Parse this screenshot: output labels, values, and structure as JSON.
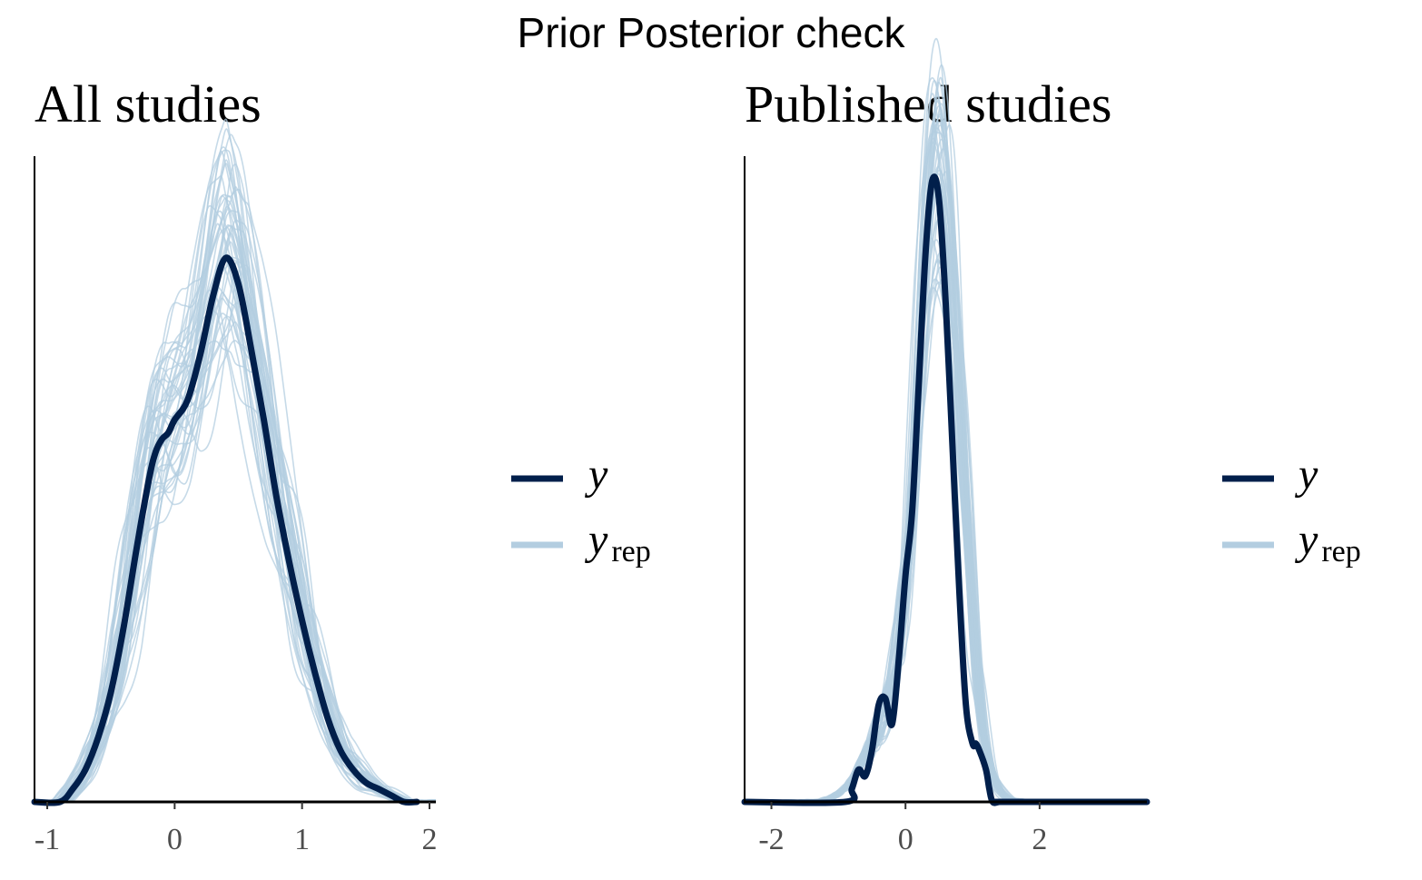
{
  "suptitle": "Prior Posterior check",
  "legend": {
    "y_label": "y",
    "yrep_label": "y",
    "yrep_sub": "rep"
  },
  "colors": {
    "y": "#011f4b",
    "yrep": "#b3cde0"
  },
  "chart_data": [
    {
      "type": "line",
      "title": "All studies",
      "xlim": [
        -1.1,
        2.05
      ],
      "xticks": [
        -1,
        0,
        1,
        2
      ],
      "xtick_labels": [
        "-1",
        "0",
        "1",
        "2"
      ],
      "ylim": [
        0,
        1.0
      ],
      "legend": "right",
      "series": [
        {
          "name": "y",
          "x": [
            -1.1,
            -0.9,
            -0.8,
            -0.7,
            -0.6,
            -0.5,
            -0.4,
            -0.3,
            -0.2,
            -0.15,
            -0.1,
            -0.05,
            0,
            0.1,
            0.2,
            0.3,
            0.4,
            0.5,
            0.6,
            0.7,
            0.8,
            0.9,
            1.0,
            1.1,
            1.2,
            1.3,
            1.4,
            1.5,
            1.6,
            1.7,
            1.8,
            1.9
          ],
          "y": [
            0,
            0,
            0.02,
            0.05,
            0.1,
            0.17,
            0.27,
            0.39,
            0.5,
            0.54,
            0.56,
            0.57,
            0.59,
            0.62,
            0.69,
            0.78,
            0.84,
            0.8,
            0.7,
            0.59,
            0.47,
            0.37,
            0.28,
            0.2,
            0.13,
            0.08,
            0.05,
            0.03,
            0.02,
            0.01,
            0,
            0
          ]
        }
      ]
    },
    {
      "type": "line",
      "title": "Published studies",
      "xlim": [
        -2.4,
        3.6
      ],
      "xticks": [
        -2,
        0,
        2
      ],
      "xtick_labels": [
        "-2",
        "0",
        "2"
      ],
      "ylim": [
        0,
        1.0
      ],
      "legend": "right",
      "series": [
        {
          "name": "y",
          "x": [
            -2.4,
            -0.9,
            -0.8,
            -0.7,
            -0.6,
            -0.5,
            -0.4,
            -0.3,
            -0.2,
            -0.1,
            0,
            0.1,
            0.2,
            0.3,
            0.4,
            0.5,
            0.6,
            0.7,
            0.8,
            0.9,
            1.0,
            1.05,
            1.1,
            1.2,
            1.25,
            1.3,
            1.4,
            1.5,
            3.6
          ],
          "y": [
            0,
            0,
            0.02,
            0.05,
            0.04,
            0.08,
            0.15,
            0.16,
            0.12,
            0.22,
            0.35,
            0.45,
            0.65,
            0.85,
            0.96,
            0.93,
            0.77,
            0.55,
            0.33,
            0.15,
            0.09,
            0.09,
            0.08,
            0.05,
            0.02,
            0,
            0,
            0,
            0
          ]
        }
      ]
    }
  ]
}
